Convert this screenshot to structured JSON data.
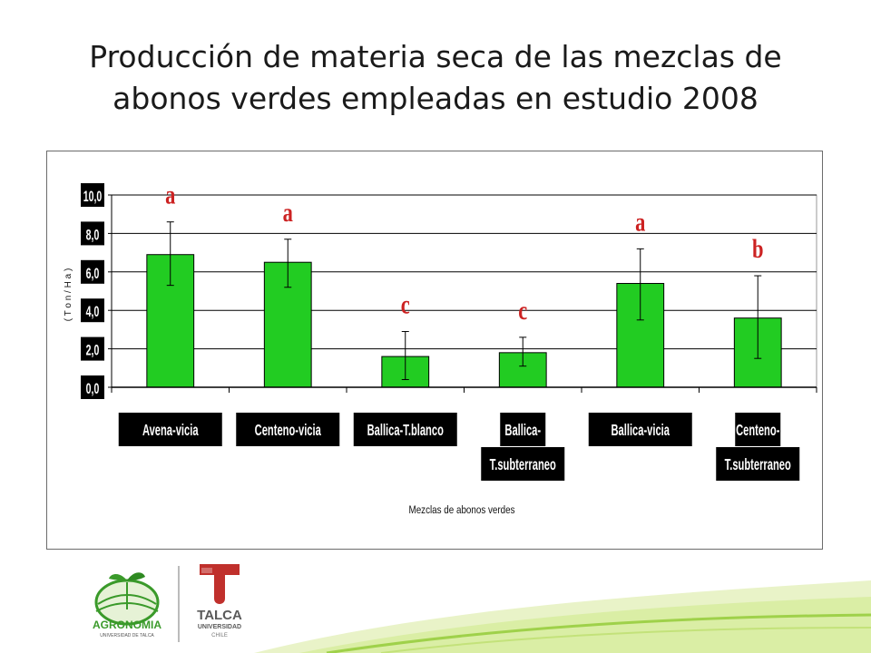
{
  "slide": {
    "title_line1": "Producción de materia seca de las mezclas de",
    "title_line2": "abonos verdes empleadas en estudio 2008"
  },
  "chart_data": {
    "type": "bar",
    "title": "",
    "xlabel": "Mezclas de abonos verdes",
    "ylabel": "( T o n / H a )",
    "ylim": [
      0,
      10
    ],
    "yticks": [
      "0,0",
      "2,0",
      "4,0",
      "6,0",
      "8,0",
      "10,0"
    ],
    "grid": true,
    "bar_color": "#22cc22",
    "categories": [
      [
        "Avena-vicia"
      ],
      [
        "Centeno-vicia"
      ],
      [
        "Ballica-T.blanco"
      ],
      [
        "Ballica-",
        "T.subterraneo"
      ],
      [
        "Ballica-vicia"
      ],
      [
        "Centeno-",
        "T.subterraneo"
      ]
    ],
    "values": [
      6.9,
      6.5,
      1.6,
      1.8,
      5.4,
      3.6
    ],
    "error_high": [
      8.6,
      7.7,
      2.9,
      2.6,
      7.2,
      5.8
    ],
    "error_low": [
      5.3,
      5.2,
      0.4,
      1.1,
      3.5,
      1.5
    ],
    "significance_letters": [
      "a",
      "a",
      "c",
      "c",
      "a",
      "b"
    ],
    "letter_color": "#cc2222"
  },
  "logos": {
    "agronomia_name": "AGRONOMIA",
    "agronomia_sub": "UNIVERSIDAD DE TALCA",
    "talca_name": "TALCA",
    "talca_sub": "UNIVERSIDAD",
    "talca_country": "CHILE",
    "brand_green": "#3a9a2a",
    "brand_red": "#c0302c"
  }
}
